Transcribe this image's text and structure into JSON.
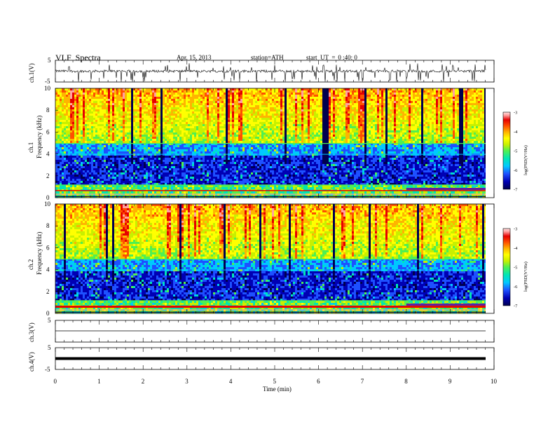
{
  "header": {
    "title": "VLF  Spectra",
    "date": "Apr. 15, 2013",
    "station": "station=ATH",
    "start_label": "start  UT  =",
    "start_time": "0 :40: 0"
  },
  "chart_data": [
    {
      "type": "line",
      "panel": "ch1-waveform",
      "ylabel": "ch.1(V)",
      "ylim": [
        -5,
        5
      ],
      "yticks": [
        "5",
        "-5"
      ],
      "series": [
        {
          "description": "noisy waveform with frequent downward spikes",
          "values_range": [
            -5,
            5
          ]
        }
      ]
    },
    {
      "type": "heatmap",
      "panel": "ch1-spectrogram",
      "ylabel": "Frequency (kHz)",
      "channel_label": "ch.1",
      "ylim": [
        0,
        10
      ],
      "yticks": [
        "0",
        "2",
        "4",
        "6",
        "8",
        "10"
      ],
      "colorbar": {
        "label": "log(PSD(V²/Hz)",
        "range": [
          -7,
          -3
        ],
        "ticks": [
          "-3",
          "-4",
          "-5",
          "-6",
          "-7"
        ]
      }
    },
    {
      "type": "heatmap",
      "panel": "ch2-spectrogram",
      "ylabel": "Frequency (kHz)",
      "channel_label": "ch.2",
      "ylim": [
        0,
        10
      ],
      "yticks": [
        "0",
        "2",
        "4",
        "6",
        "8",
        "10"
      ],
      "colorbar": {
        "label": "log(PSD(V²/Hz)",
        "range": [
          -7,
          -3
        ],
        "ticks": [
          "-3",
          "-4",
          "-5",
          "-6",
          "-7"
        ]
      }
    },
    {
      "type": "line",
      "panel": "ch3-waveform",
      "ylabel": "ch.3(V)",
      "ylim": [
        -5,
        5
      ],
      "yticks": [
        "5"
      ],
      "series": [
        {
          "description": "flat line near 0",
          "values_range": [
            0,
            0
          ]
        }
      ]
    },
    {
      "type": "line",
      "panel": "ch4-waveform",
      "ylabel": "ch.4(V)",
      "ylim": [
        -5,
        5
      ],
      "yticks": [
        "5",
        "-5"
      ],
      "series": [
        {
          "description": "thick band near 0",
          "values_range": [
            -0.5,
            0.5
          ]
        }
      ]
    }
  ],
  "x_axis": {
    "label": "Time  (min)",
    "range": [
      0,
      10
    ],
    "ticks": [
      "0",
      "1",
      "2",
      "3",
      "4",
      "5",
      "6",
      "7",
      "8",
      "9",
      "10"
    ]
  },
  "colors": {
    "colormap": [
      "#000050",
      "#0000b4",
      "#1e50ff",
      "#00c8ff",
      "#00e6b4",
      "#50f050",
      "#c8f000",
      "#ffff00",
      "#ffb400",
      "#ff5000",
      "#e60000",
      "#ffa0a0",
      "#ffe0e0"
    ],
    "waveform": "#000000"
  }
}
